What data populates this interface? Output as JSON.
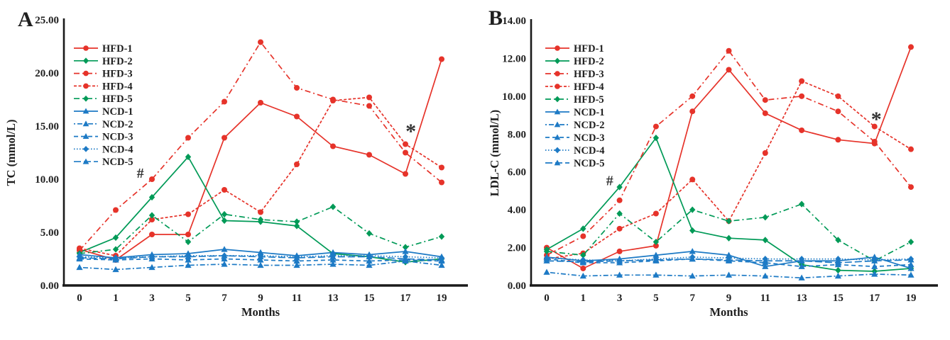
{
  "figure": {
    "kind": "two-panel line figure",
    "colors": {
      "hfd_red": "#e6332a",
      "hfd_green": "#009a57",
      "ncd_blue": "#1d7ac5",
      "axis": "#1a1a1a",
      "text": "#1f1f1f",
      "annotation": "#333333"
    }
  },
  "chart_data": [
    {
      "type": "line",
      "panel_label": "A",
      "title": "",
      "xlabel": "Months",
      "ylabel": "TC (mmol/L)",
      "x_categories": [
        "0",
        "1",
        "3",
        "5",
        "7",
        "9",
        "11",
        "13",
        "15",
        "17",
        "19"
      ],
      "ylim": [
        0,
        25
      ],
      "ytick_labels": [
        "0.00",
        "5.00",
        "10.00",
        "15.00",
        "20.00",
        "25.00"
      ],
      "grid": false,
      "legend_position": "inside-top-left",
      "legend_order": [
        "HFD-1",
        "HFD-2",
        "HFD-3",
        "HFD-4",
        "HFD-5",
        "NCD-1",
        "NCD-2",
        "NCD-3",
        "NCD-4",
        "NCD-5"
      ],
      "series": [
        {
          "name": "HFD-1",
          "color": "#e6332a",
          "style": "solid",
          "marker": "circle",
          "values": [
            3.4,
            2.4,
            4.8,
            4.8,
            13.9,
            17.2,
            15.9,
            13.1,
            12.3,
            10.5,
            21.3
          ]
        },
        {
          "name": "HFD-2",
          "color": "#009a57",
          "style": "solid",
          "marker": "diamond",
          "values": [
            3.1,
            4.5,
            8.3,
            12.1,
            6.1,
            6.0,
            5.6,
            3.0,
            2.7,
            2.2,
            2.5
          ]
        },
        {
          "name": "HFD-3",
          "color": "#e6332a",
          "style": "dashdot",
          "marker": "circle",
          "values": [
            3.3,
            7.1,
            10.0,
            13.9,
            17.3,
            22.9,
            18.6,
            17.5,
            16.9,
            12.5,
            9.7
          ]
        },
        {
          "name": "HFD-4",
          "color": "#e6332a",
          "style": "dashed",
          "marker": "circle",
          "values": [
            3.5,
            2.8,
            6.2,
            6.7,
            9.0,
            6.9,
            11.4,
            17.4,
            17.7,
            13.3,
            11.1
          ]
        },
        {
          "name": "HFD-5",
          "color": "#009a57",
          "style": "dashdot",
          "marker": "diamond",
          "values": [
            3.0,
            3.4,
            6.6,
            4.1,
            6.7,
            6.2,
            6.0,
            7.4,
            4.9,
            3.6,
            4.6
          ]
        },
        {
          "name": "NCD-1",
          "color": "#1d7ac5",
          "style": "solid",
          "marker": "triangle",
          "values": [
            2.9,
            2.6,
            2.9,
            3.0,
            3.4,
            3.1,
            2.8,
            3.1,
            2.9,
            3.2,
            2.7
          ]
        },
        {
          "name": "NCD-2",
          "color": "#1d7ac5",
          "style": "finedashdot",
          "marker": "triangle",
          "values": [
            1.7,
            1.5,
            1.7,
            1.9,
            2.0,
            1.9,
            1.9,
            2.0,
            1.9,
            2.3,
            1.9
          ]
        },
        {
          "name": "NCD-3",
          "color": "#1d7ac5",
          "style": "meddash",
          "marker": "triangle",
          "values": [
            2.5,
            2.4,
            2.5,
            2.4,
            2.5,
            2.4,
            2.3,
            2.4,
            2.3,
            2.4,
            2.3
          ]
        },
        {
          "name": "NCD-4",
          "color": "#1d7ac5",
          "style": "dotted",
          "marker": "diamond",
          "values": [
            2.7,
            2.6,
            2.7,
            2.8,
            2.8,
            2.8,
            2.7,
            2.8,
            2.8,
            2.7,
            2.6
          ]
        },
        {
          "name": "NCD-5",
          "color": "#1d7ac5",
          "style": "longdash",
          "marker": "triangle",
          "values": [
            2.6,
            2.5,
            2.7,
            2.7,
            2.8,
            2.7,
            2.6,
            2.7,
            2.7,
            2.5,
            2.4
          ]
        }
      ],
      "annotations": [
        {
          "text": "#",
          "x_index": 1.68,
          "value": 10.6
        },
        {
          "text": "*",
          "x_index": 9.15,
          "value": 14.8
        }
      ]
    },
    {
      "type": "line",
      "panel_label": "B",
      "title": "",
      "xlabel": "Months",
      "ylabel": "LDL-C (mmol/L)",
      "x_categories": [
        "0",
        "1",
        "3",
        "5",
        "7",
        "9",
        "11",
        "13",
        "15",
        "17",
        "19"
      ],
      "ylim": [
        0,
        14
      ],
      "ytick_labels": [
        "0.00",
        "2.00",
        "4.00",
        "6.00",
        "8.00",
        "10.00",
        "12.00",
        "14.00"
      ],
      "grid": false,
      "legend_position": "inside-top-left",
      "legend_order": [
        "HFD-1",
        "HFD-2",
        "HFD-3",
        "HFD-4",
        "HFD-5",
        "NCD-1",
        "NCD-2",
        "NCD-3",
        "NCD-4",
        "NCD-5"
      ],
      "series": [
        {
          "name": "HFD-1",
          "color": "#e6332a",
          "style": "solid",
          "marker": "circle",
          "values": [
            2.0,
            0.9,
            1.8,
            2.1,
            9.2,
            11.4,
            9.1,
            8.2,
            7.7,
            7.5,
            12.6
          ]
        },
        {
          "name": "HFD-2",
          "color": "#009a57",
          "style": "solid",
          "marker": "diamond",
          "values": [
            1.9,
            3.0,
            5.2,
            7.8,
            2.9,
            2.5,
            2.4,
            1.1,
            0.8,
            0.75,
            0.9
          ]
        },
        {
          "name": "HFD-3",
          "color": "#e6332a",
          "style": "dashdot",
          "marker": "circle",
          "values": [
            1.6,
            2.6,
            4.5,
            8.4,
            10.0,
            12.4,
            9.8,
            10.0,
            9.2,
            7.6,
            5.2
          ]
        },
        {
          "name": "HFD-4",
          "color": "#e6332a",
          "style": "dashed",
          "marker": "circle",
          "values": [
            1.4,
            1.7,
            3.0,
            3.8,
            5.6,
            3.4,
            7.0,
            10.8,
            10.0,
            8.4,
            7.2
          ]
        },
        {
          "name": "HFD-5",
          "color": "#009a57",
          "style": "dashdot",
          "marker": "diamond",
          "values": [
            1.8,
            1.6,
            3.8,
            2.3,
            4.0,
            3.4,
            3.6,
            4.3,
            2.4,
            1.3,
            2.3
          ]
        },
        {
          "name": "NCD-1",
          "color": "#1d7ac5",
          "style": "solid",
          "marker": "triangle",
          "values": [
            1.5,
            1.3,
            1.4,
            1.6,
            1.8,
            1.6,
            1.0,
            1.3,
            1.3,
            1.5,
            0.9
          ]
        },
        {
          "name": "NCD-2",
          "color": "#1d7ac5",
          "style": "finedashdot",
          "marker": "triangle",
          "values": [
            0.7,
            0.5,
            0.55,
            0.55,
            0.5,
            0.55,
            0.5,
            0.4,
            0.5,
            0.6,
            0.55
          ]
        },
        {
          "name": "NCD-3",
          "color": "#1d7ac5",
          "style": "meddash",
          "marker": "triangle",
          "values": [
            1.4,
            1.2,
            1.2,
            1.3,
            1.4,
            1.3,
            1.2,
            1.0,
            1.1,
            1.0,
            1.1
          ]
        },
        {
          "name": "NCD-4",
          "color": "#1d7ac5",
          "style": "dotted",
          "marker": "diamond",
          "values": [
            1.45,
            1.35,
            1.3,
            1.4,
            1.5,
            1.45,
            1.4,
            1.4,
            1.4,
            1.35,
            1.4
          ]
        },
        {
          "name": "NCD-5",
          "color": "#1d7ac5",
          "style": "longdash",
          "marker": "triangle",
          "values": [
            1.3,
            1.25,
            1.3,
            1.35,
            1.4,
            1.35,
            1.3,
            1.3,
            1.2,
            1.3,
            1.35
          ]
        }
      ],
      "annotations": [
        {
          "text": "#",
          "x_index": 1.73,
          "value": 5.55
        },
        {
          "text": "*",
          "x_index": 9.05,
          "value": 8.95
        }
      ]
    }
  ]
}
